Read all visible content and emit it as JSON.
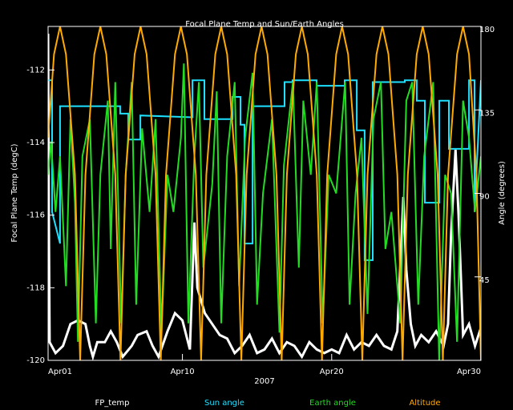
{
  "chart_data": {
    "type": "line",
    "title": "Focal Plane Temp and Sun/Earth Angles",
    "xlabel": "2007",
    "ylabel": "Focal Plane Temp (degC)",
    "y2label": "Angle (degrees)",
    "xlim": [
      1,
      30
    ],
    "xticks": [
      {
        "value": 1,
        "label": "Apr01"
      },
      {
        "value": 10,
        "label": "Apr10"
      },
      {
        "value": 20,
        "label": "Apr20"
      },
      {
        "value": 30,
        "label": "Apr30"
      }
    ],
    "ylim": [
      -120,
      -110.8
    ],
    "yticks": [
      -120,
      -118,
      -116,
      -114,
      -112
    ],
    "y2lim": [
      0,
      180
    ],
    "y2ticks": [
      45,
      90,
      135,
      180
    ],
    "series": [
      {
        "name": "FP_temp",
        "color": "#ffffff",
        "axis": "y",
        "x": [
          1.0,
          1.05,
          1.1,
          1.5,
          2.0,
          2.5,
          3.0,
          3.5,
          3.8,
          4.0,
          4.3,
          4.8,
          5.2,
          5.6,
          6.0,
          6.6,
          7.0,
          7.6,
          8.0,
          8.4,
          9.0,
          9.5,
          10.0,
          10.5,
          10.8,
          11.0,
          11.5,
          12.0,
          12.5,
          13.0,
          13.5,
          14.0,
          14.5,
          15.0,
          15.5,
          16.0,
          16.5,
          17.0,
          17.5,
          18.0,
          18.5,
          19.0,
          19.5,
          20.0,
          20.5,
          21.0,
          21.5,
          22.0,
          22.5,
          23.0,
          23.5,
          24.0,
          24.4,
          24.8,
          25.0,
          25.3,
          25.6,
          26.0,
          26.5,
          27.0,
          27.5,
          27.8,
          28.0,
          28.3,
          28.5,
          28.8,
          29.2,
          29.6,
          30.0
        ],
        "values": [
          -111,
          -116,
          -119.5,
          -119.8,
          -119.6,
          -119.0,
          -118.9,
          -119.0,
          -119.6,
          -119.9,
          -119.5,
          -119.5,
          -119.2,
          -119.5,
          -119.9,
          -119.6,
          -119.3,
          -119.2,
          -119.6,
          -119.9,
          -119.2,
          -118.7,
          -118.9,
          -119.7,
          -116.2,
          -118.0,
          -118.7,
          -119.0,
          -119.3,
          -119.4,
          -119.8,
          -119.6,
          -119.3,
          -119.8,
          -119.7,
          -119.4,
          -119.8,
          -119.5,
          -119.6,
          -119.9,
          -119.5,
          -119.7,
          -119.8,
          -119.7,
          -119.8,
          -119.3,
          -119.7,
          -119.5,
          -119.6,
          -119.3,
          -119.6,
          -119.7,
          -119.2,
          -115.5,
          -117.5,
          -119.0,
          -119.6,
          -119.3,
          -119.5,
          -119.2,
          -119.6,
          -119.0,
          -116.5,
          -114.2,
          -116,
          -119.3,
          -119.0,
          -119.6,
          -119.1
        ]
      },
      {
        "name": "Sun angle",
        "color": "#1ee0ff",
        "axis": "y2",
        "x": [
          1.0,
          1.27,
          1.27,
          1.8,
          1.8,
          5.83,
          5.83,
          6.37,
          6.37,
          7.18,
          7.18,
          10.67,
          10.67,
          11.47,
          11.47,
          13.35,
          13.35,
          13.89,
          13.89,
          14.16,
          14.16,
          14.7,
          14.7,
          16.84,
          16.84,
          17.38,
          17.38,
          18.99,
          18.99,
          20.87,
          20.87,
          21.68,
          21.68,
          22.21,
          22.21,
          22.75,
          22.75,
          24.9,
          24.9,
          25.7,
          25.7,
          26.24,
          26.24,
          27.21,
          27.21,
          27.85,
          27.85,
          29.2,
          29.2,
          29.57,
          29.57,
          30.0
        ],
        "values": [
          151,
          151,
          80,
          63,
          137,
          137,
          133,
          133,
          119,
          119,
          132,
          131,
          151,
          151,
          130,
          130,
          142,
          142,
          127,
          127,
          63,
          63,
          137,
          137,
          150,
          150,
          151,
          151,
          148,
          148,
          151,
          151,
          124,
          124,
          54,
          54,
          150,
          150,
          151,
          151,
          140,
          140,
          85,
          85,
          140,
          140,
          114,
          114,
          151,
          151,
          80,
          151
        ]
      },
      {
        "name": "Earth angle",
        "color": "#22dd22",
        "axis": "y2",
        "x": [
          1.0,
          1.2,
          1.5,
          1.8,
          2.2,
          2.5,
          2.8,
          3.0,
          3.3,
          3.8,
          4.2,
          4.5,
          5.0,
          5.2,
          5.5,
          5.9,
          6.2,
          6.6,
          6.9,
          7.3,
          7.8,
          8.2,
          8.6,
          9.0,
          9.4,
          9.9,
          10.1,
          10.4,
          10.8,
          11.1,
          11.4,
          12.0,
          12.3,
          12.6,
          13.0,
          13.5,
          13.8,
          14.2,
          14.7,
          15.0,
          15.4,
          16.0,
          16.5,
          16.8,
          17.4,
          17.8,
          18.1,
          18.6,
          19.0,
          19.4,
          19.8,
          20.3,
          20.9,
          21.2,
          21.6,
          22.0,
          22.4,
          22.8,
          23.3,
          23.6,
          24.0,
          24.6,
          25.0,
          25.4,
          25.8,
          26.2,
          26.8,
          27.2,
          27.6,
          28.0,
          28.4,
          28.8,
          29.2,
          29.6,
          30.0
        ],
        "values": [
          100,
          118,
          80,
          110,
          40,
          130,
          85,
          10,
          110,
          130,
          20,
          100,
          140,
          60,
          150,
          20,
          100,
          150,
          30,
          125,
          80,
          130,
          15,
          100,
          80,
          120,
          160,
          20,
          110,
          150,
          50,
          95,
          145,
          20,
          110,
          150,
          40,
          120,
          155,
          30,
          90,
          130,
          15,
          105,
          150,
          50,
          140,
          100,
          150,
          20,
          100,
          90,
          150,
          30,
          90,
          120,
          25,
          130,
          150,
          60,
          80,
          20,
          140,
          150,
          30,
          110,
          150,
          0,
          100,
          90,
          10,
          140,
          120,
          80,
          110
        ]
      },
      {
        "name": "Altitude",
        "color": "#ffaa00",
        "axis": "y2",
        "x": [
          1.0,
          1.4,
          1.8,
          2.2,
          2.8,
          3.15,
          3.5,
          4.1,
          4.5,
          4.9,
          5.5,
          5.85,
          6.2,
          6.8,
          7.2,
          7.6,
          8.2,
          8.55,
          8.9,
          9.5,
          9.9,
          10.3,
          10.9,
          11.25,
          11.6,
          12.2,
          12.6,
          13.0,
          13.6,
          13.95,
          14.3,
          14.9,
          15.3,
          15.7,
          16.3,
          16.65,
          17.0,
          17.6,
          18.0,
          18.4,
          19.0,
          19.35,
          19.7,
          20.3,
          20.7,
          21.1,
          21.7,
          22.05,
          22.4,
          23.0,
          23.4,
          23.8,
          24.4,
          24.75,
          25.1,
          25.7,
          26.1,
          26.5,
          27.1,
          27.45,
          27.8,
          28.4,
          28.8,
          29.2,
          29.7,
          30.0
        ],
        "values": [
          120,
          165,
          180,
          165,
          100,
          0,
          100,
          165,
          180,
          165,
          100,
          0,
          100,
          165,
          180,
          165,
          100,
          0,
          100,
          165,
          180,
          165,
          100,
          0,
          100,
          165,
          180,
          165,
          100,
          0,
          100,
          165,
          180,
          165,
          100,
          0,
          100,
          165,
          180,
          165,
          100,
          0,
          100,
          165,
          180,
          165,
          100,
          0,
          100,
          165,
          180,
          165,
          100,
          0,
          100,
          165,
          180,
          165,
          100,
          0,
          100,
          165,
          180,
          165,
          100,
          0
        ]
      }
    ]
  }
}
